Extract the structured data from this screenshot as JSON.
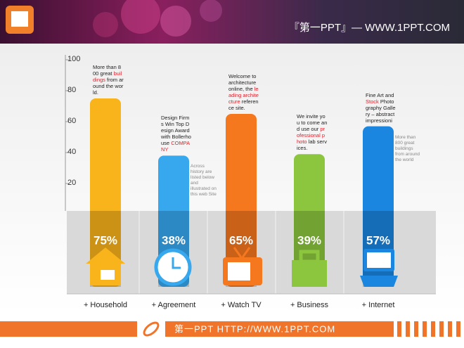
{
  "header": {
    "title": "『第一PPT』— WWW.1PPT.COM"
  },
  "footer": {
    "text": "第一PPT  HTTP://WWW.1PPT.COM"
  },
  "chart_data": {
    "type": "bar",
    "categories": [
      "+ Household",
      "+ Agreement",
      "+ Watch  TV",
      "+ Business",
      "+ Internet"
    ],
    "values": [
      75,
      38,
      65,
      39,
      57
    ],
    "value_labels": [
      "75%",
      "38%",
      "65%",
      "39%",
      "57%"
    ],
    "colors": [
      "#f9b31b",
      "#38a8ee",
      "#f6781e",
      "#8cc63e",
      "#1a86e0"
    ],
    "ylim": [
      0,
      100
    ],
    "yticks": [
      20,
      40,
      60,
      80,
      100
    ],
    "annotations": [
      [
        {
          "text": "More than 800 great "
        },
        {
          "text": "buildings",
          "highlight": true
        },
        {
          "text": " from around the world."
        }
      ],
      [
        {
          "text": "Design Firms Win Top Design Award with Bollerhouse "
        },
        {
          "text": "COMPANY",
          "highlight": true
        }
      ],
      [
        {
          "text": "Welcome to architecture online, the "
        },
        {
          "text": "leading architecture",
          "highlight": true
        },
        {
          "text": " reference site."
        }
      ],
      [
        {
          "text": "We invite you to come and use our "
        },
        {
          "text": "professional photo",
          "highlight": true
        },
        {
          "text": " lab services."
        }
      ],
      [
        {
          "text": "Fine Art and "
        },
        {
          "text": "Stock",
          "highlight": true
        },
        {
          "text": " Photography Gallery – abstract impressioni"
        }
      ]
    ],
    "side_notes": [
      null,
      "Across history are listed below and illustrated on this web Site",
      null,
      null,
      "More than 800 great buildings from around the world"
    ]
  }
}
